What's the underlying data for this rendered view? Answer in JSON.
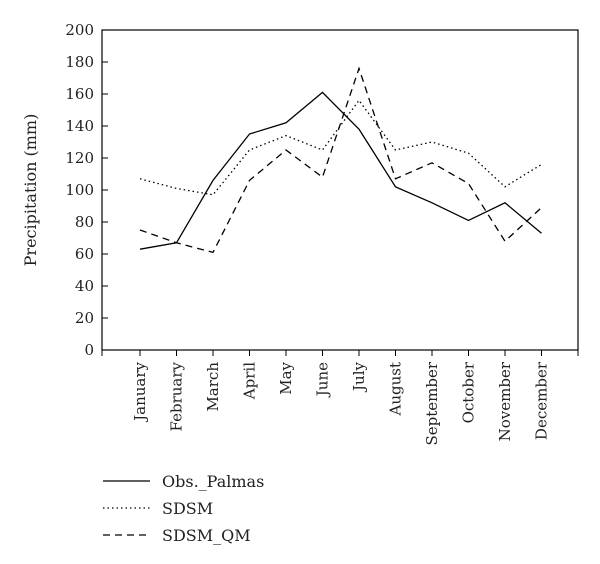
{
  "chart_data": {
    "type": "line",
    "title": "",
    "xlabel": "",
    "ylabel": "Precipitation (mm)",
    "ylim": [
      0,
      200
    ],
    "yticks": [
      0,
      20,
      40,
      60,
      80,
      100,
      120,
      140,
      160,
      180,
      200
    ],
    "categories": [
      "January",
      "February",
      "March",
      "April",
      "May",
      "June",
      "July",
      "August",
      "September",
      "October",
      "November",
      "December"
    ],
    "grid": false,
    "legend_position": "bottom-left",
    "series": [
      {
        "name": "Obs._Palmas",
        "style": "solid",
        "color": "#000000",
        "values": [
          63,
          67,
          106,
          135,
          142,
          161,
          138,
          102,
          92,
          81,
          92,
          73
        ]
      },
      {
        "name": "SDSM",
        "style": "dotted",
        "color": "#000000",
        "values": [
          107,
          101,
          97,
          125,
          134,
          125,
          156,
          125,
          130,
          123,
          102,
          116
        ]
      },
      {
        "name": "SDSM_QM",
        "style": "dashed",
        "color": "#000000",
        "values": [
          75,
          67,
          61,
          106,
          125,
          108,
          176,
          107,
          117,
          104,
          68,
          89
        ]
      }
    ]
  }
}
